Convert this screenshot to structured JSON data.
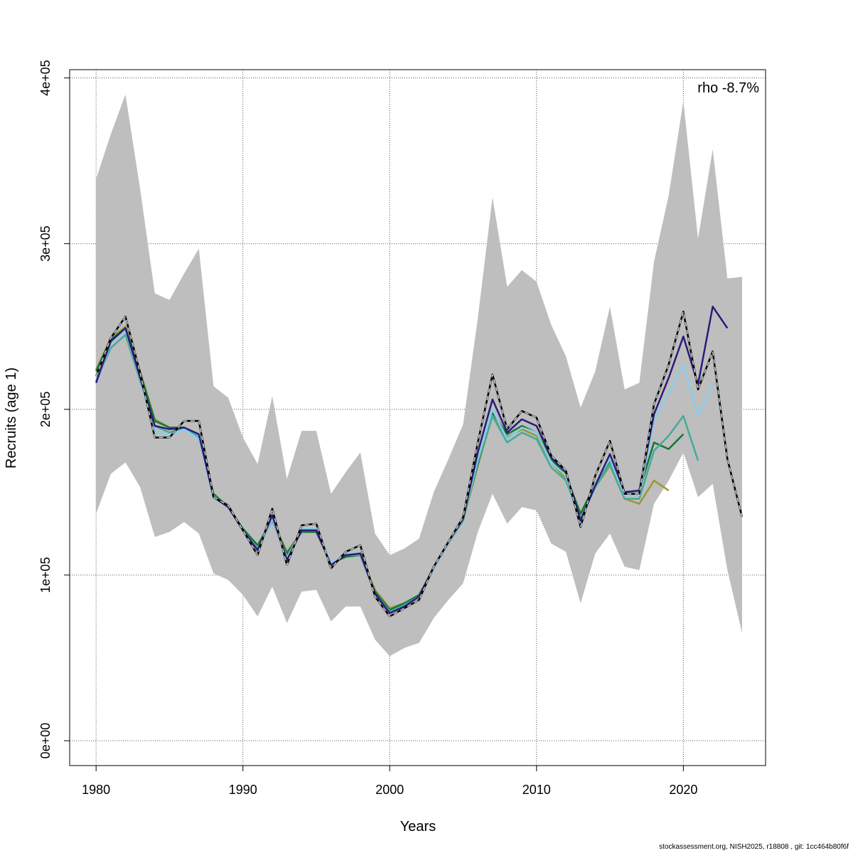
{
  "footer": "stockassessment.org, NISH2025, r18808 , git: 1cc464b80f6f",
  "chart_data": {
    "type": "line",
    "title": "",
    "xlabel": "Years",
    "ylabel": "Recruits (age 1)",
    "annotation": "rho -8.7%",
    "xlim": [
      1978.2,
      2025.6
    ],
    "ylim": [
      -15000,
      405000
    ],
    "x_ticks": [
      1980,
      1990,
      2000,
      2010,
      2020
    ],
    "x_tick_labels": [
      "1980",
      "1990",
      "2000",
      "2010",
      "2020"
    ],
    "y_ticks": [
      0,
      100000,
      200000,
      300000,
      400000
    ],
    "y_tick_labels": [
      "0e+00",
      "1e+05",
      "2e+05",
      "3e+05",
      "4e+05"
    ],
    "grid": true,
    "band": {
      "x": [
        1980,
        1981,
        1982,
        1983,
        1984,
        1985,
        1986,
        1987,
        1988,
        1989,
        1990,
        1991,
        1992,
        1993,
        1994,
        1995,
        1996,
        1997,
        1998,
        1999,
        2000,
        2001,
        2002,
        2003,
        2004,
        2005,
        2006,
        2007,
        2008,
        2009,
        2010,
        2011,
        2012,
        2013,
        2014,
        2015,
        2016,
        2017,
        2018,
        2019,
        2020,
        2021,
        2022,
        2023,
        2024
      ],
      "upper": [
        339000,
        366000,
        390000,
        333000,
        270000,
        266000,
        282000,
        297000,
        214000,
        207000,
        183000,
        167000,
        208000,
        158000,
        187000,
        187000,
        149000,
        162000,
        174000,
        125000,
        112000,
        116000,
        122000,
        150000,
        170000,
        191000,
        255000,
        328000,
        274000,
        284000,
        277000,
        251000,
        232000,
        201000,
        223000,
        262000,
        212000,
        216000,
        289000,
        329000,
        386000,
        303000,
        357000,
        279000,
        280000
      ],
      "lower": [
        137000,
        161000,
        168000,
        153000,
        123000,
        126000,
        132000,
        125000,
        101000,
        97000,
        88000,
        75000,
        93000,
        71000,
        90000,
        91000,
        72000,
        81000,
        81000,
        61000,
        51000,
        56000,
        59000,
        74000,
        85000,
        95000,
        126000,
        149000,
        131000,
        141000,
        139000,
        119000,
        114000,
        83000,
        113000,
        125000,
        105000,
        103000,
        143000,
        157000,
        174000,
        147000,
        155000,
        103000,
        65000
      ]
    },
    "series": [
      {
        "color": "#000000",
        "dashed_overlay": true,
        "x": [
          1980,
          1981,
          1982,
          1983,
          1984,
          1985,
          1986,
          1987,
          1988,
          1989,
          1990,
          1991,
          1992,
          1993,
          1994,
          1995,
          1996,
          1997,
          1998,
          1999,
          2000,
          2001,
          2002,
          2003,
          2004,
          2005,
          2006,
          2007,
          2008,
          2009,
          2010,
          2011,
          2012,
          2013,
          2014,
          2015,
          2016,
          2017,
          2018,
          2019,
          2020,
          2021,
          2022,
          2023,
          2024
        ],
        "values": [
          220000,
          243000,
          256000,
          222000,
          183000,
          183000,
          193000,
          193000,
          147000,
          142000,
          127000,
          112000,
          140000,
          106000,
          130000,
          131000,
          104000,
          114000,
          118000,
          87000,
          75000,
          80000,
          85000,
          105000,
          120000,
          135000,
          180000,
          221000,
          188000,
          199000,
          195000,
          172000,
          163000,
          129000,
          160000,
          181000,
          149000,
          149000,
          203000,
          227000,
          259000,
          212000,
          235000,
          170000,
          135000
        ]
      },
      {
        "color": "#2b1b7a",
        "x": [
          1980,
          1981,
          1982,
          1983,
          1984,
          1985,
          1986,
          1987,
          1988,
          1989,
          1990,
          1991,
          1992,
          1993,
          1994,
          1995,
          1996,
          1997,
          1998,
          1999,
          2000,
          2001,
          2002,
          2003,
          2004,
          2005,
          2006,
          2007,
          2008,
          2009,
          2010,
          2011,
          2012,
          2013,
          2014,
          2015,
          2016,
          2017,
          2018,
          2019,
          2020,
          2021,
          2022,
          2023
        ],
        "values": [
          216000,
          241000,
          249000,
          219000,
          190000,
          188000,
          189000,
          185000,
          147000,
          141000,
          127000,
          115000,
          136000,
          109000,
          127000,
          127000,
          106000,
          112000,
          113000,
          89000,
          77000,
          81000,
          87000,
          105000,
          120000,
          134000,
          174000,
          206000,
          186000,
          194000,
          190000,
          171000,
          162000,
          133000,
          154000,
          173000,
          150000,
          151000,
          197000,
          219000,
          244000,
          215000,
          262000,
          249000
        ]
      },
      {
        "color": "#87ceeb",
        "x": [
          1980,
          1981,
          1982,
          1983,
          1984,
          1985,
          1986,
          1987,
          1988,
          1989,
          1990,
          1991,
          1992,
          1993,
          1994,
          1995,
          1996,
          1997,
          1998,
          1999,
          2000,
          2001,
          2002,
          2003,
          2004,
          2005,
          2006,
          2007,
          2008,
          2009,
          2010,
          2011,
          2012,
          2013,
          2014,
          2015,
          2016,
          2017,
          2018,
          2019,
          2020,
          2021,
          2022
        ],
        "values": [
          215000,
          240000,
          248000,
          218000,
          187000,
          184000,
          188000,
          182000,
          147000,
          141000,
          127000,
          115000,
          134000,
          110000,
          128000,
          128000,
          107000,
          113000,
          113000,
          89000,
          77000,
          81000,
          87000,
          104000,
          119000,
          134000,
          170000,
          200000,
          182000,
          189000,
          186000,
          168000,
          160000,
          132000,
          155000,
          170000,
          148000,
          148000,
          193000,
          210000,
          227000,
          196000,
          215000
        ]
      },
      {
        "color": "#44aa99",
        "x": [
          1980,
          1981,
          1982,
          1983,
          1984,
          1985,
          1986,
          1987,
          1988,
          1989,
          1990,
          1991,
          1992,
          1993,
          1994,
          1995,
          1996,
          1997,
          1998,
          1999,
          2000,
          2001,
          2002,
          2003,
          2004,
          2005,
          2006,
          2007,
          2008,
          2009,
          2010,
          2011,
          2012,
          2013,
          2014,
          2015,
          2016,
          2017,
          2018,
          2019,
          2020,
          2021
        ],
        "values": [
          217000,
          237000,
          245000,
          217000,
          190000,
          186000,
          189000,
          183000,
          148000,
          141000,
          127000,
          116000,
          133000,
          111000,
          127000,
          127000,
          107000,
          112000,
          112000,
          89000,
          78000,
          82000,
          87000,
          104000,
          119000,
          133000,
          168000,
          196000,
          180000,
          186000,
          182000,
          165000,
          157000,
          134000,
          153000,
          167000,
          146000,
          146000,
          175000,
          184000,
          196000,
          169000
        ]
      },
      {
        "color": "#117733",
        "x": [
          1980,
          1981,
          1982,
          1983,
          1984,
          1985,
          1986,
          1987,
          1988,
          1989,
          1990,
          1991,
          1992,
          1993,
          1994,
          1995,
          1996,
          1997,
          1998,
          1999,
          2000,
          2001,
          2002,
          2003,
          2004,
          2005,
          2006,
          2007,
          2008,
          2009,
          2010,
          2011,
          2012,
          2013,
          2014,
          2015,
          2016,
          2017,
          2018,
          2019,
          2020
        ],
        "values": [
          223000,
          242000,
          249000,
          222000,
          193000,
          189000,
          189000,
          183000,
          149000,
          141000,
          128000,
          118000,
          133000,
          113000,
          126000,
          126000,
          107000,
          111000,
          112000,
          90000,
          79000,
          83000,
          88000,
          104000,
          119000,
          134000,
          167000,
          198000,
          185000,
          190000,
          186000,
          170000,
          160000,
          137000,
          155000,
          169000,
          150000,
          151000,
          180000,
          176000,
          185000
        ]
      },
      {
        "color": "#999933",
        "x": [
          1980,
          1981,
          1982,
          1983,
          1984,
          1985,
          1986,
          1987,
          1988,
          1989,
          1990,
          1991,
          1992,
          1993,
          1994,
          1995,
          1996,
          1997,
          1998,
          1999,
          2000,
          2001,
          2002,
          2003,
          2004,
          2005,
          2006,
          2007,
          2008,
          2009,
          2010,
          2011,
          2012,
          2013,
          2014,
          2015,
          2016,
          2017,
          2018,
          2019
        ],
        "values": [
          224000,
          243000,
          250000,
          223000,
          194000,
          189000,
          189000,
          182000,
          149000,
          141000,
          128000,
          118000,
          133000,
          114000,
          126000,
          126000,
          107000,
          111000,
          112000,
          91000,
          80000,
          83000,
          88000,
          104000,
          119000,
          133000,
          166000,
          196000,
          183000,
          188000,
          184000,
          168000,
          158000,
          137000,
          153000,
          166000,
          146000,
          143000,
          157000,
          151000
        ]
      }
    ]
  }
}
